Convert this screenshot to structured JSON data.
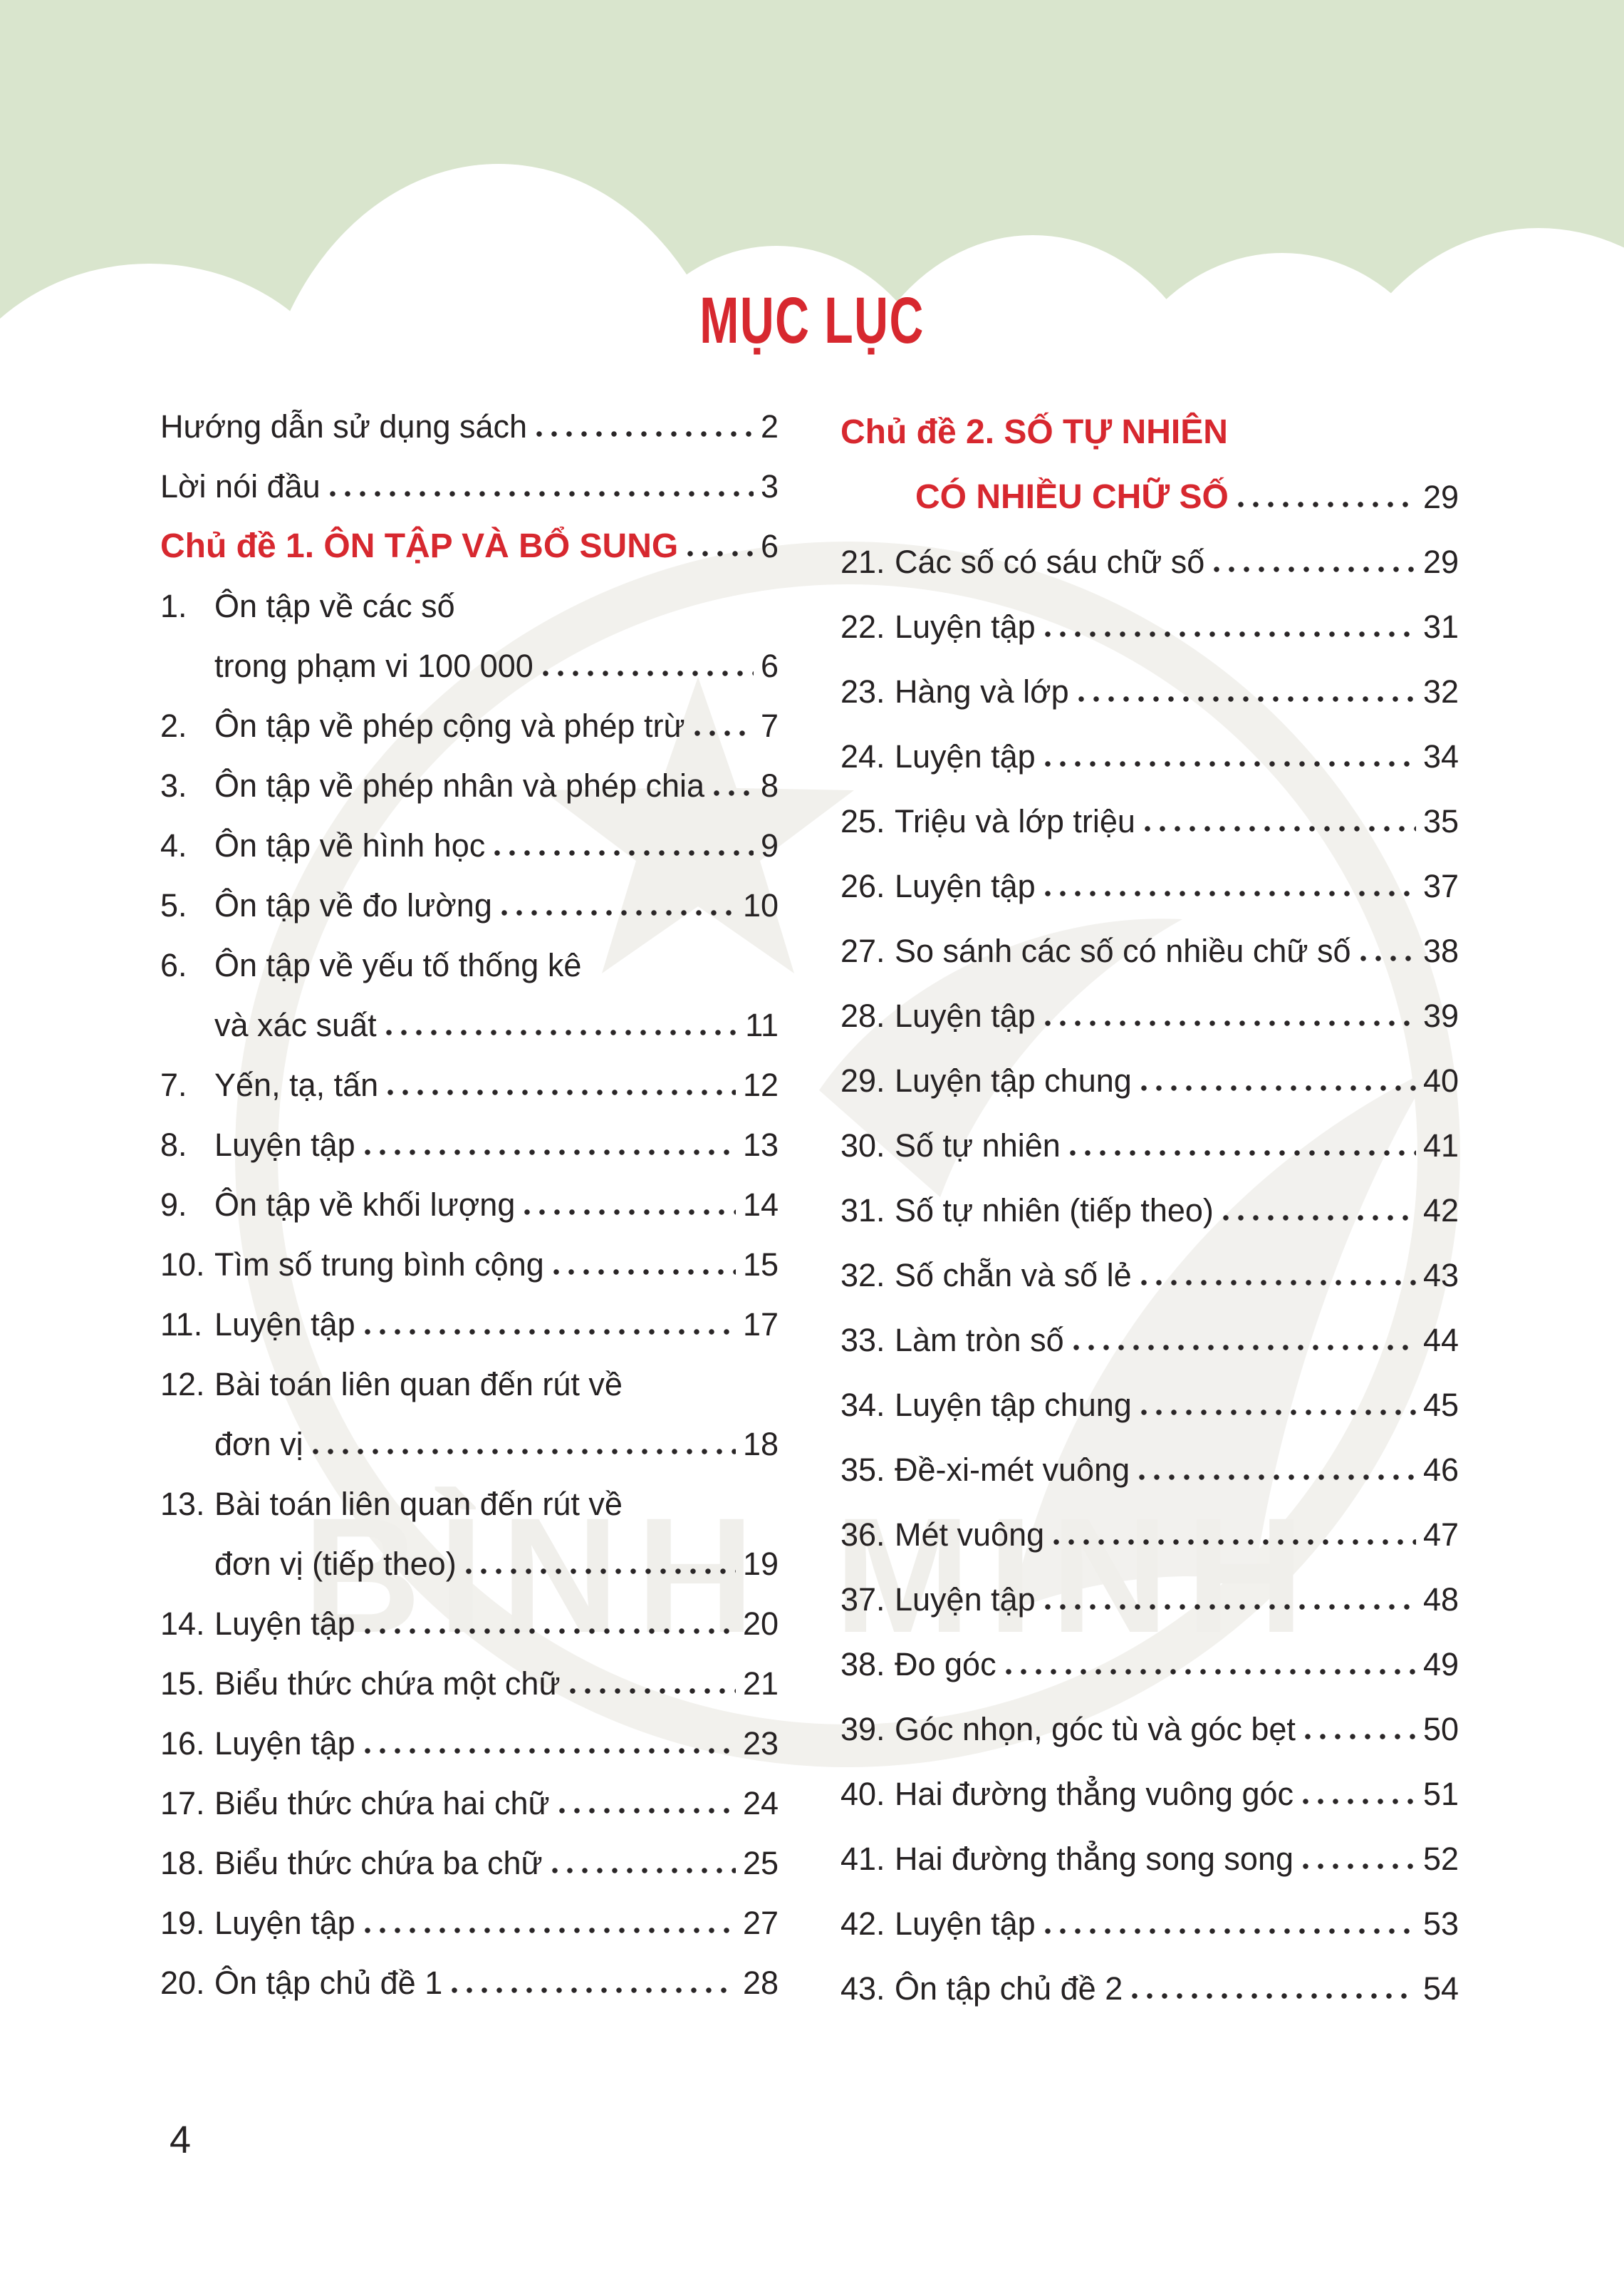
{
  "page": {
    "title": "MỤC LỤC",
    "page_number": "4",
    "watermark": "BÌNH MINH",
    "colors": {
      "header_green": "#d9e5cd",
      "accent_red": "#d7282f",
      "text": "#262223"
    }
  },
  "front_matter": [
    {
      "label": "Hướng dẫn sử dụng sách",
      "page": "2"
    },
    {
      "label": "Lời nói đầu",
      "page": "3"
    }
  ],
  "chapters": [
    {
      "heading": "Chủ đề 1. ÔN TẬP VÀ BỔ SUNG",
      "heading2": "",
      "page": "6",
      "items": [
        {
          "num": "1.",
          "text": "Ôn tập về các số",
          "text2": "trong phạm vi 100 000",
          "page": "6"
        },
        {
          "num": "2.",
          "text": "Ôn tập về phép cộng và phép trừ",
          "page": "7"
        },
        {
          "num": "3.",
          "text": "Ôn tập về phép nhân và phép chia",
          "page": "8"
        },
        {
          "num": "4.",
          "text": "Ôn tập về hình học",
          "page": "9"
        },
        {
          "num": "5.",
          "text": "Ôn tập về đo lường",
          "page": "10"
        },
        {
          "num": "6.",
          "text": "Ôn tập về yếu tố thống kê",
          "text2": "và xác suất",
          "page": "11"
        },
        {
          "num": "7.",
          "text": "Yến, tạ, tấn",
          "page": "12"
        },
        {
          "num": "8.",
          "text": "Luyện tập",
          "page": "13"
        },
        {
          "num": "9.",
          "text": "Ôn tập về khối lượng",
          "page": "14"
        },
        {
          "num": "10.",
          "text": "Tìm số trung bình cộng",
          "page": "15"
        },
        {
          "num": "11.",
          "text": "Luyện tập",
          "page": "17"
        },
        {
          "num": "12.",
          "text": "Bài toán liên quan đến rút về",
          "text2": "đơn vị",
          "page": "18"
        },
        {
          "num": "13.",
          "text": "Bài toán liên quan đến rút về",
          "text2": "đơn vị (tiếp theo)",
          "page": "19"
        },
        {
          "num": "14.",
          "text": "Luyện tập",
          "page": "20"
        },
        {
          "num": "15.",
          "text": "Biểu thức chứa một chữ",
          "page": "21"
        },
        {
          "num": "16.",
          "text": "Luyện tập",
          "page": "23"
        },
        {
          "num": "17.",
          "text": "Biểu thức chứa hai chữ",
          "page": "24"
        },
        {
          "num": "18.",
          "text": "Biểu thức chứa ba chữ",
          "page": "25"
        },
        {
          "num": "19.",
          "text": "Luyện tập",
          "page": "27"
        },
        {
          "num": "20.",
          "text": "Ôn tập chủ đề 1",
          "page": "28"
        }
      ]
    },
    {
      "heading": "Chủ đề 2. SỐ TỰ NHIÊN",
      "heading2": "CÓ NHIỀU CHỮ SỐ",
      "page": "29",
      "items": [
        {
          "num": "21.",
          "text": "Các số có sáu chữ số",
          "page": "29"
        },
        {
          "num": "22.",
          "text": "Luyện tập",
          "page": "31"
        },
        {
          "num": "23.",
          "text": "Hàng và lớp",
          "page": "32"
        },
        {
          "num": "24.",
          "text": "Luyện tập",
          "page": "34"
        },
        {
          "num": "25.",
          "text": "Triệu và lớp triệu",
          "page": "35"
        },
        {
          "num": "26.",
          "text": "Luyện tập",
          "page": "37"
        },
        {
          "num": "27.",
          "text": "So sánh các số có nhiều chữ số",
          "page": "38"
        },
        {
          "num": "28.",
          "text": "Luyện tập",
          "page": "39"
        },
        {
          "num": "29.",
          "text": "Luyện tập chung",
          "page": "40"
        },
        {
          "num": "30.",
          "text": "Số tự nhiên",
          "page": "41"
        },
        {
          "num": "31.",
          "text": "Số tự nhiên (tiếp theo)",
          "page": "42"
        },
        {
          "num": "32.",
          "text": "Số chẵn và số lẻ",
          "page": "43"
        },
        {
          "num": "33.",
          "text": "Làm tròn số",
          "page": "44"
        },
        {
          "num": "34.",
          "text": "Luyện tập chung",
          "page": "45"
        },
        {
          "num": "35.",
          "text": "Đề-xi-mét vuông",
          "page": "46"
        },
        {
          "num": "36.",
          "text": "Mét vuông",
          "page": "47"
        },
        {
          "num": "37.",
          "text": "Luyện tập",
          "page": "48"
        },
        {
          "num": "38.",
          "text": "Đo góc",
          "page": "49"
        },
        {
          "num": "39.",
          "text": "Góc nhọn, góc tù và góc bẹt",
          "page": "50"
        },
        {
          "num": "40.",
          "text": "Hai đường thẳng vuông góc",
          "page": "51"
        },
        {
          "num": "41.",
          "text": "Hai đường thẳng song song",
          "page": "52"
        },
        {
          "num": "42.",
          "text": "Luyện tập",
          "page": "53"
        },
        {
          "num": "43.",
          "text": "Ôn tập chủ đề 2",
          "page": "54"
        }
      ]
    }
  ]
}
